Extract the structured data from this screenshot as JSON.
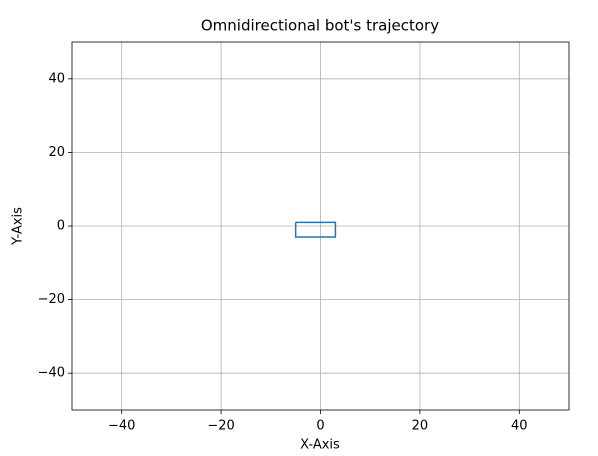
{
  "chart_data": {
    "type": "line",
    "title": "Omnidirectional bot's trajectory",
    "x_label": "X-Axis",
    "y_label": "Y-Axis",
    "series": [
      {
        "color": "#1f77b4",
        "x": [
          -5,
          3,
          3,
          -5,
          -5
        ],
        "values": [
          1,
          1,
          -3,
          -3,
          1
        ]
      }
    ],
    "xlim": [
      -50,
      50
    ],
    "xticks": [
      {
        "value": -40,
        "label": "−40"
      },
      {
        "value": -20,
        "label": "−20"
      },
      0,
      20,
      40
    ],
    "ylim": [
      -50,
      50
    ],
    "yticks": [
      {
        "value": -40,
        "label": "−40"
      },
      {
        "value": -20,
        "label": "−20"
      },
      0,
      20,
      40
    ],
    "grid": true
  }
}
